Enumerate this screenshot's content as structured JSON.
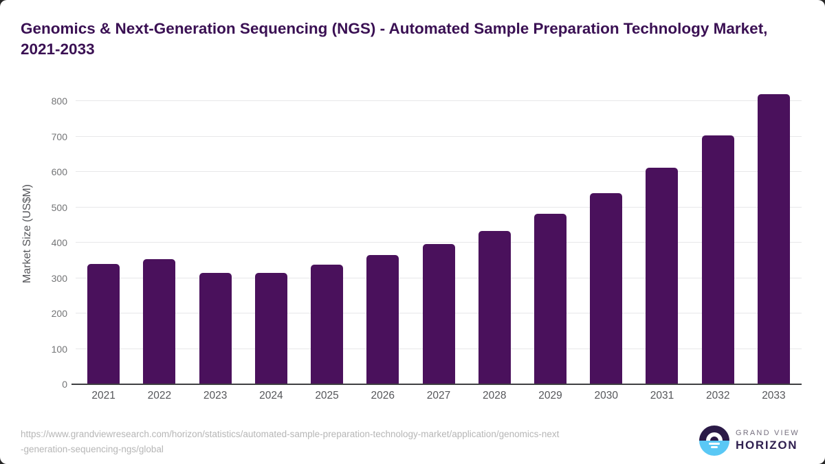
{
  "title": "Genomics & Next-Generation Sequencing (NGS) - Automated Sample Preparation Technology Market, 2021-2033",
  "chart_data": {
    "type": "bar",
    "categories": [
      "2021",
      "2022",
      "2023",
      "2024",
      "2025",
      "2026",
      "2027",
      "2028",
      "2029",
      "2030",
      "2031",
      "2032",
      "2033"
    ],
    "values": [
      339,
      354,
      315,
      315,
      338,
      365,
      396,
      434,
      482,
      540,
      611,
      703,
      819
    ],
    "title": "Genomics & Next-Generation Sequencing (NGS) - Automated Sample Preparation Technology Market, 2021-2033",
    "xlabel": "",
    "ylabel": "Market Size (US$M)",
    "ylim": [
      0,
      800
    ],
    "yticks": [
      0,
      100,
      200,
      300,
      400,
      500,
      600,
      700,
      800
    ],
    "grid": true,
    "legend": false,
    "bar_color": "#4a115c"
  },
  "footer": {
    "source_url_lines": [
      "https://www.grandviewresearch.com/horizon/statistics/automated-sample-preparation-technology-market/application/genomics-next",
      "-generation-sequencing-ngs/global"
    ],
    "logo": {
      "top_text": "GRAND VIEW",
      "bottom_text": "HORIZON"
    }
  },
  "colors": {
    "bar": "#4a115c",
    "title": "#3a1053",
    "axis_line": "#3e3f41",
    "gridline": "#e7e7e9",
    "tick_label": "#55565a",
    "source_text": "#b6b6b6",
    "logo_dark": "#2b1a47",
    "logo_blue": "#5ac8f5"
  }
}
